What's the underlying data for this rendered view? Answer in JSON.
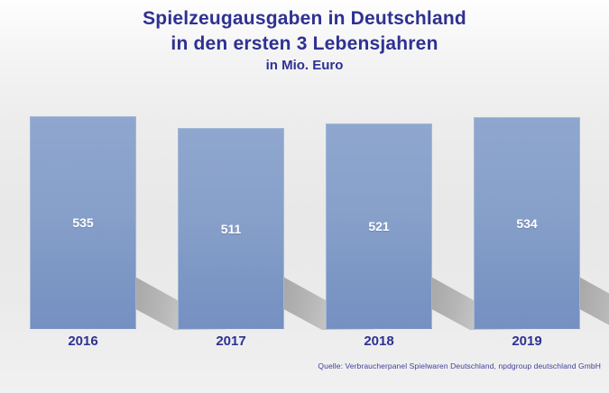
{
  "title": {
    "line1": "Spielzeugausgaben in Deutschland",
    "line2": "in den ersten 3 Lebensjahren",
    "line3": "in Mio. Euro"
  },
  "source": "Quelle: Verbraucherpanel Spielwaren Deutschland, npdgroup deutschland GmbH",
  "chart_data": {
    "type": "bar",
    "title": "Spielzeugausgaben in Deutschland in den ersten 3 Lebensjahren",
    "subtitle": "in Mio. Euro",
    "categories": [
      "2016",
      "2017",
      "2018",
      "2019"
    ],
    "values": [
      535,
      511,
      521,
      534
    ],
    "xlabel": "",
    "ylabel": "",
    "data_labels": true,
    "legend": false,
    "grid": false,
    "axis_lines": false,
    "colors": {
      "bar_fill_top": "#8fa7ce",
      "bar_fill_bottom": "#7590c2",
      "bar_border": "#a3b6d6",
      "title_text": "#2e3192",
      "axis_text": "#2e3192",
      "value_label": "#ffffff",
      "shadow": "#a8a8a8",
      "source_text": "#41419b",
      "background_top": "#fefefe",
      "background_mid": "#e8e8e8",
      "background_bottom": "#f1f1f1"
    }
  }
}
